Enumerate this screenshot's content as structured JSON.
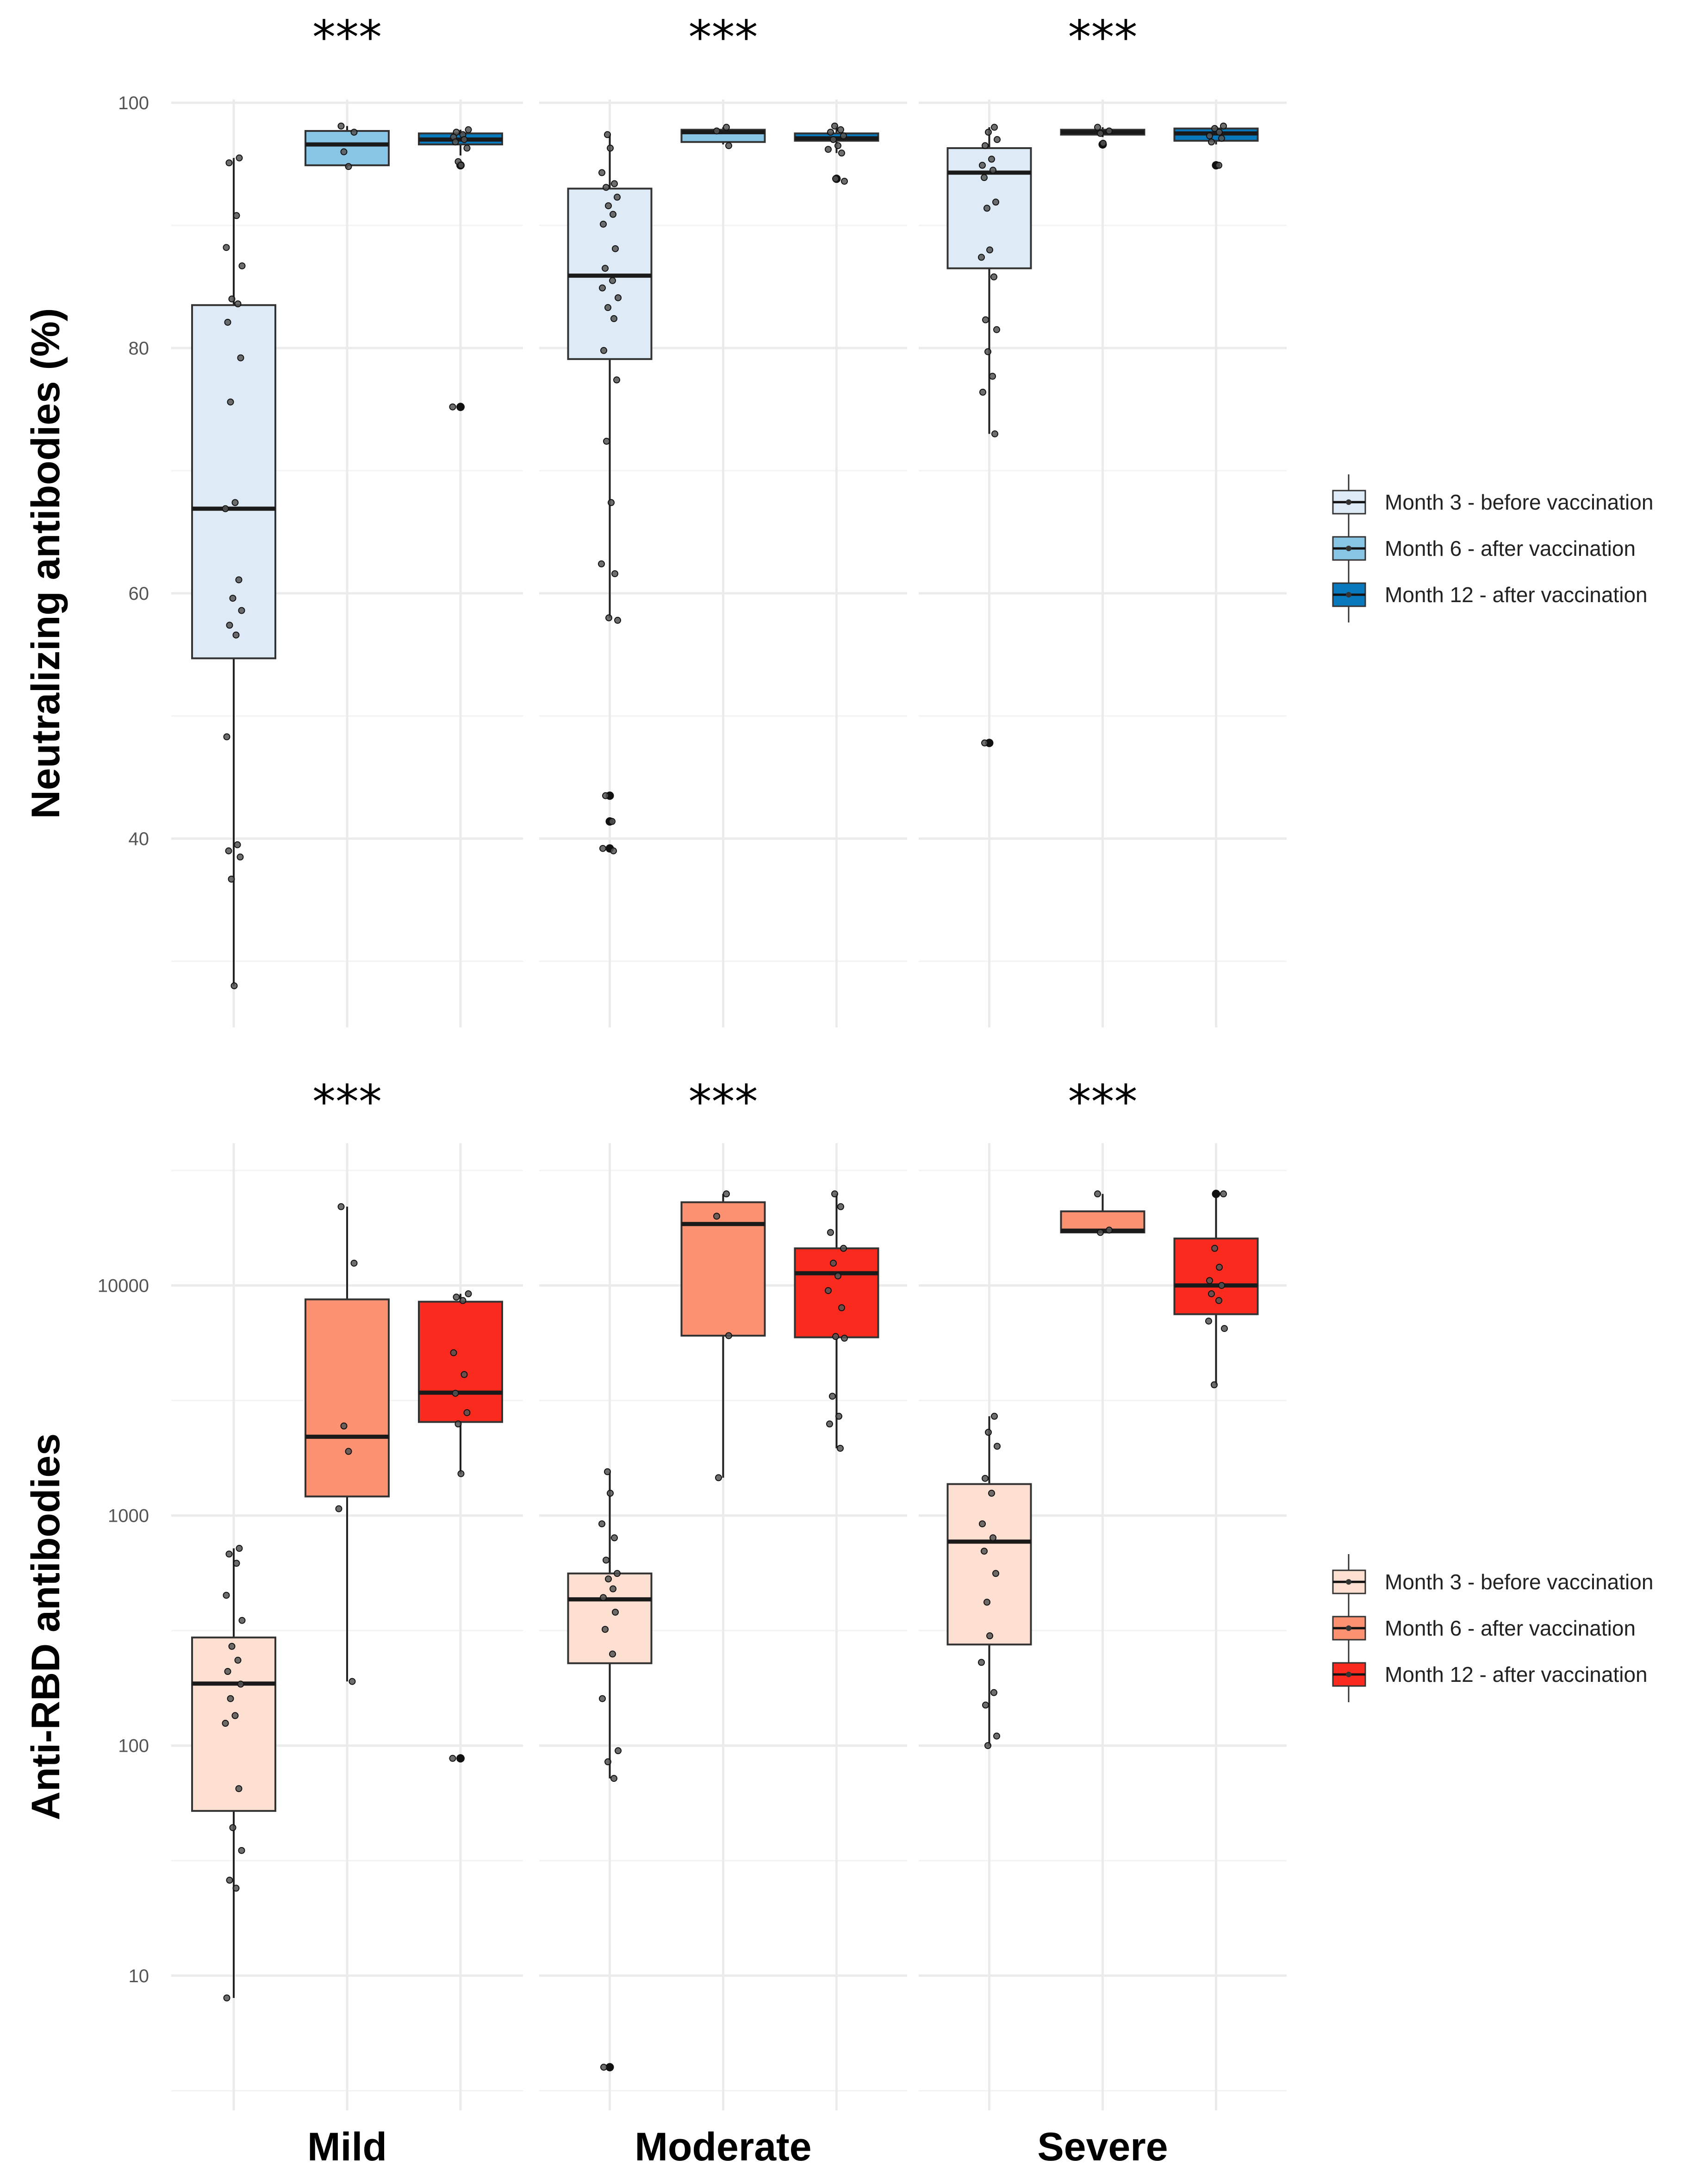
{
  "chart_data": [
    {
      "type": "box",
      "ylabel": "Neutralizing antibodies (%)",
      "scale": "linear",
      "ylim": [
        25,
        100
      ],
      "yticks": [
        40,
        60,
        80,
        100
      ],
      "categories": [
        "Mild",
        "Moderate",
        "Severe"
      ],
      "significance": [
        "***",
        "***",
        "***"
      ],
      "legend": [
        "Month 3 - before vaccination",
        "Month 6 - after vaccination",
        "Month 12 - after vaccination"
      ],
      "colors": [
        "#deebf7",
        "#89c6e6",
        "#0879bd"
      ],
      "boxes": [
        {
          "category": "Mild",
          "series": 0,
          "q1": 54.7,
          "median": 66.9,
          "q3": 83.5,
          "whisker_low": 28.0,
          "whisker_high": 95.5,
          "outliers": [],
          "points": [
            95.5,
            95.1,
            90.8,
            88.2,
            86.7,
            84.0,
            83.6,
            82.1,
            79.2,
            75.6,
            67.4,
            66.9,
            61.1,
            59.6,
            58.6,
            57.4,
            56.6,
            48.3,
            39.5,
            39.0,
            38.5,
            36.7,
            28.0
          ]
        },
        {
          "category": "Mild",
          "series": 1,
          "q1": 94.9,
          "median": 96.6,
          "q3": 97.7,
          "whisker_low": 94.7,
          "whisker_high": 98.1,
          "outliers": [],
          "points": [
            98.1,
            97.6,
            96.0,
            94.8
          ]
        },
        {
          "category": "Mild",
          "series": 2,
          "q1": 96.6,
          "median": 97.0,
          "q3": 97.5,
          "whisker_low": 95.7,
          "whisker_high": 97.8,
          "outliers": [
            94.9,
            75.2
          ],
          "points": [
            97.8,
            97.6,
            97.4,
            97.2,
            97.0,
            96.8,
            96.3,
            95.2,
            94.9,
            75.2
          ]
        },
        {
          "category": "Moderate",
          "series": 0,
          "q1": 79.1,
          "median": 85.9,
          "q3": 93.0,
          "whisker_low": 58.0,
          "whisker_high": 97.4,
          "outliers": [
            43.5,
            41.4,
            39.2
          ],
          "points": [
            97.4,
            96.3,
            94.3,
            93.4,
            93.1,
            92.3,
            91.6,
            90.9,
            90.1,
            88.1,
            86.5,
            85.5,
            84.9,
            84.1,
            83.3,
            82.4,
            79.8,
            77.4,
            72.4,
            67.4,
            62.4,
            61.6,
            58.0,
            57.8,
            43.5,
            41.4,
            39.2,
            39.0
          ]
        },
        {
          "category": "Moderate",
          "series": 1,
          "q1": 96.8,
          "median": 97.6,
          "q3": 97.8,
          "whisker_low": 96.6,
          "whisker_high": 98.0,
          "outliers": [],
          "points": [
            98.0,
            97.7,
            96.5
          ]
        },
        {
          "category": "Moderate",
          "series": 2,
          "q1": 96.9,
          "median": 97.1,
          "q3": 97.5,
          "whisker_low": 95.9,
          "whisker_high": 98.1,
          "outliers": [
            93.8
          ],
          "points": [
            98.1,
            97.8,
            97.6,
            97.3,
            97.0,
            96.5,
            96.2,
            95.9,
            93.8,
            93.6
          ]
        },
        {
          "category": "Severe",
          "series": 0,
          "q1": 86.5,
          "median": 94.3,
          "q3": 96.3,
          "whisker_low": 73.0,
          "whisker_high": 98.0,
          "outliers": [
            47.8
          ],
          "points": [
            98.0,
            97.6,
            97.0,
            96.5,
            95.4,
            94.9,
            94.5,
            93.9,
            91.9,
            91.4,
            88.0,
            87.4,
            85.8,
            82.3,
            81.5,
            79.7,
            77.7,
            76.4,
            73.0,
            47.8
          ]
        },
        {
          "category": "Severe",
          "series": 1,
          "q1": 97.4,
          "median": 97.6,
          "q3": 97.8,
          "whisker_low": 97.2,
          "whisker_high": 98.0,
          "outliers": [
            96.6
          ],
          "points": [
            98.0,
            97.7,
            97.5,
            96.7
          ]
        },
        {
          "category": "Severe",
          "series": 2,
          "q1": 96.9,
          "median": 97.5,
          "q3": 97.9,
          "whisker_low": 96.6,
          "whisker_high": 98.1,
          "outliers": [
            94.9
          ],
          "points": [
            98.1,
            97.9,
            97.6,
            97.3,
            97.1,
            96.8,
            94.9
          ]
        }
      ]
    },
    {
      "type": "box",
      "ylabel": "Anti-RBD antibodies",
      "scale": "log10",
      "ylim": [
        3,
        40000
      ],
      "yticks": [
        10,
        100,
        1000,
        10000
      ],
      "categories": [
        "Mild",
        "Moderate",
        "Severe"
      ],
      "significance": [
        "***",
        "***",
        "***"
      ],
      "legend": [
        "Month 3 - before vaccination",
        "Month 6 - after vaccination",
        "Month 12 - after vaccination"
      ],
      "colors": [
        "#fee0d2",
        "#fc9272",
        "#fb2a1f"
      ],
      "boxes": [
        {
          "category": "Mild",
          "series": 0,
          "q1": 52,
          "median": 186,
          "q3": 295,
          "whisker_low": 8,
          "whisker_high": 720,
          "outliers": [],
          "points": [
            720,
            680,
            620,
            450,
            350,
            270,
            235,
            210,
            185,
            160,
            135,
            125,
            65,
            44,
            35,
            26,
            24,
            8
          ]
        },
        {
          "category": "Mild",
          "series": 1,
          "q1": 1210,
          "median": 2200,
          "q3": 8700,
          "whisker_low": 190,
          "whisker_high": 22000,
          "outliers": [],
          "points": [
            22000,
            12500,
            2450,
            1900,
            1070,
            190
          ]
        },
        {
          "category": "Mild",
          "series": 2,
          "q1": 2550,
          "median": 3420,
          "q3": 8500,
          "whisker_low": 1520,
          "whisker_high": 9200,
          "outliers": [
            88
          ],
          "points": [
            9200,
            8900,
            8600,
            5100,
            4100,
            3400,
            2800,
            2500,
            1520,
            88
          ]
        },
        {
          "category": "Moderate",
          "series": 0,
          "q1": 228,
          "median": 432,
          "q3": 560,
          "whisker_low": 72,
          "whisker_high": 1550,
          "outliers": [
            4
          ],
          "points": [
            1550,
            1250,
            920,
            800,
            640,
            560,
            530,
            480,
            440,
            380,
            320,
            250,
            160,
            95,
            85,
            72,
            4
          ]
        },
        {
          "category": "Moderate",
          "series": 1,
          "q1": 6050,
          "median": 18500,
          "q3": 23000,
          "whisker_low": 1460,
          "whisker_high": 25000,
          "outliers": [],
          "points": [
            25000,
            20000,
            6050,
            1460
          ]
        },
        {
          "category": "Moderate",
          "series": 2,
          "q1": 5950,
          "median": 11300,
          "q3": 14500,
          "whisker_low": 1960,
          "whisker_high": 25000,
          "outliers": [],
          "points": [
            25000,
            22000,
            17000,
            14500,
            12500,
            11000,
            9500,
            8000,
            6000,
            5900,
            3300,
            2700,
            2500,
            1960
          ]
        },
        {
          "category": "Severe",
          "series": 0,
          "q1": 275,
          "median": 770,
          "q3": 1370,
          "whisker_low": 100,
          "whisker_high": 2700,
          "outliers": [],
          "points": [
            2700,
            2300,
            2000,
            1450,
            1250,
            920,
            800,
            700,
            560,
            420,
            300,
            230,
            170,
            150,
            110,
            100
          ]
        },
        {
          "category": "Severe",
          "series": 1,
          "q1": 17000,
          "median": 17300,
          "q3": 21000,
          "whisker_low": 16800,
          "whisker_high": 25000,
          "outliers": [],
          "points": [
            25000,
            17400,
            17000
          ]
        },
        {
          "category": "Severe",
          "series": 2,
          "q1": 7500,
          "median": 10000,
          "q3": 16000,
          "whisker_low": 3700,
          "whisker_high": 25000,
          "outliers": [
            25000
          ],
          "points": [
            25000,
            14500,
            12000,
            10500,
            10000,
            9200,
            8600,
            7000,
            6500,
            3700
          ]
        }
      ]
    }
  ]
}
